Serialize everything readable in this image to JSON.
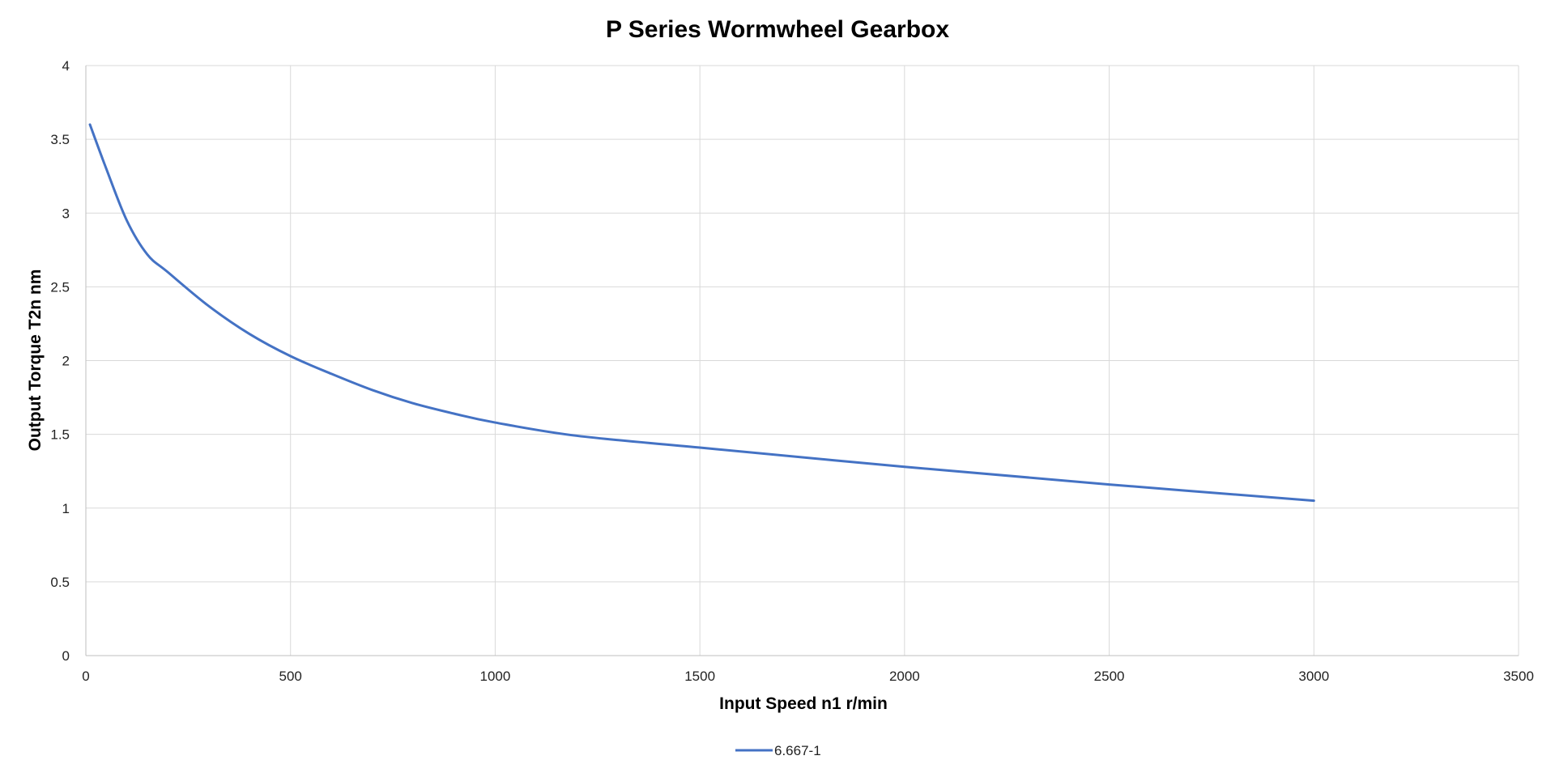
{
  "chart_data": {
    "type": "line",
    "title": "P Series Wormwheel Gearbox",
    "xlabel": "Input Speed n1 r/min",
    "ylabel": "Output Torque T2n nm",
    "xlim": [
      0,
      3500
    ],
    "ylim": [
      0,
      4
    ],
    "xticks": [
      "0",
      "500",
      "1000",
      "1500",
      "2000",
      "2500",
      "3000",
      "3500"
    ],
    "yticks": [
      "0",
      "0.5",
      "1",
      "1.5",
      "2",
      "2.5",
      "3",
      "3.5",
      "4"
    ],
    "grid": true,
    "legend_position": "bottom-center",
    "series": [
      {
        "name": "6.667-1",
        "color": "#4472C4",
        "x": [
          10,
          50,
          100,
          150,
          200,
          300,
          400,
          500,
          600,
          700,
          800,
          900,
          1000,
          1200,
          1500,
          2000,
          2500,
          3000
        ],
        "y": [
          3.6,
          3.3,
          2.95,
          2.72,
          2.6,
          2.37,
          2.18,
          2.03,
          1.91,
          1.8,
          1.71,
          1.64,
          1.58,
          1.49,
          1.41,
          1.28,
          1.16,
          1.05
        ]
      }
    ]
  }
}
